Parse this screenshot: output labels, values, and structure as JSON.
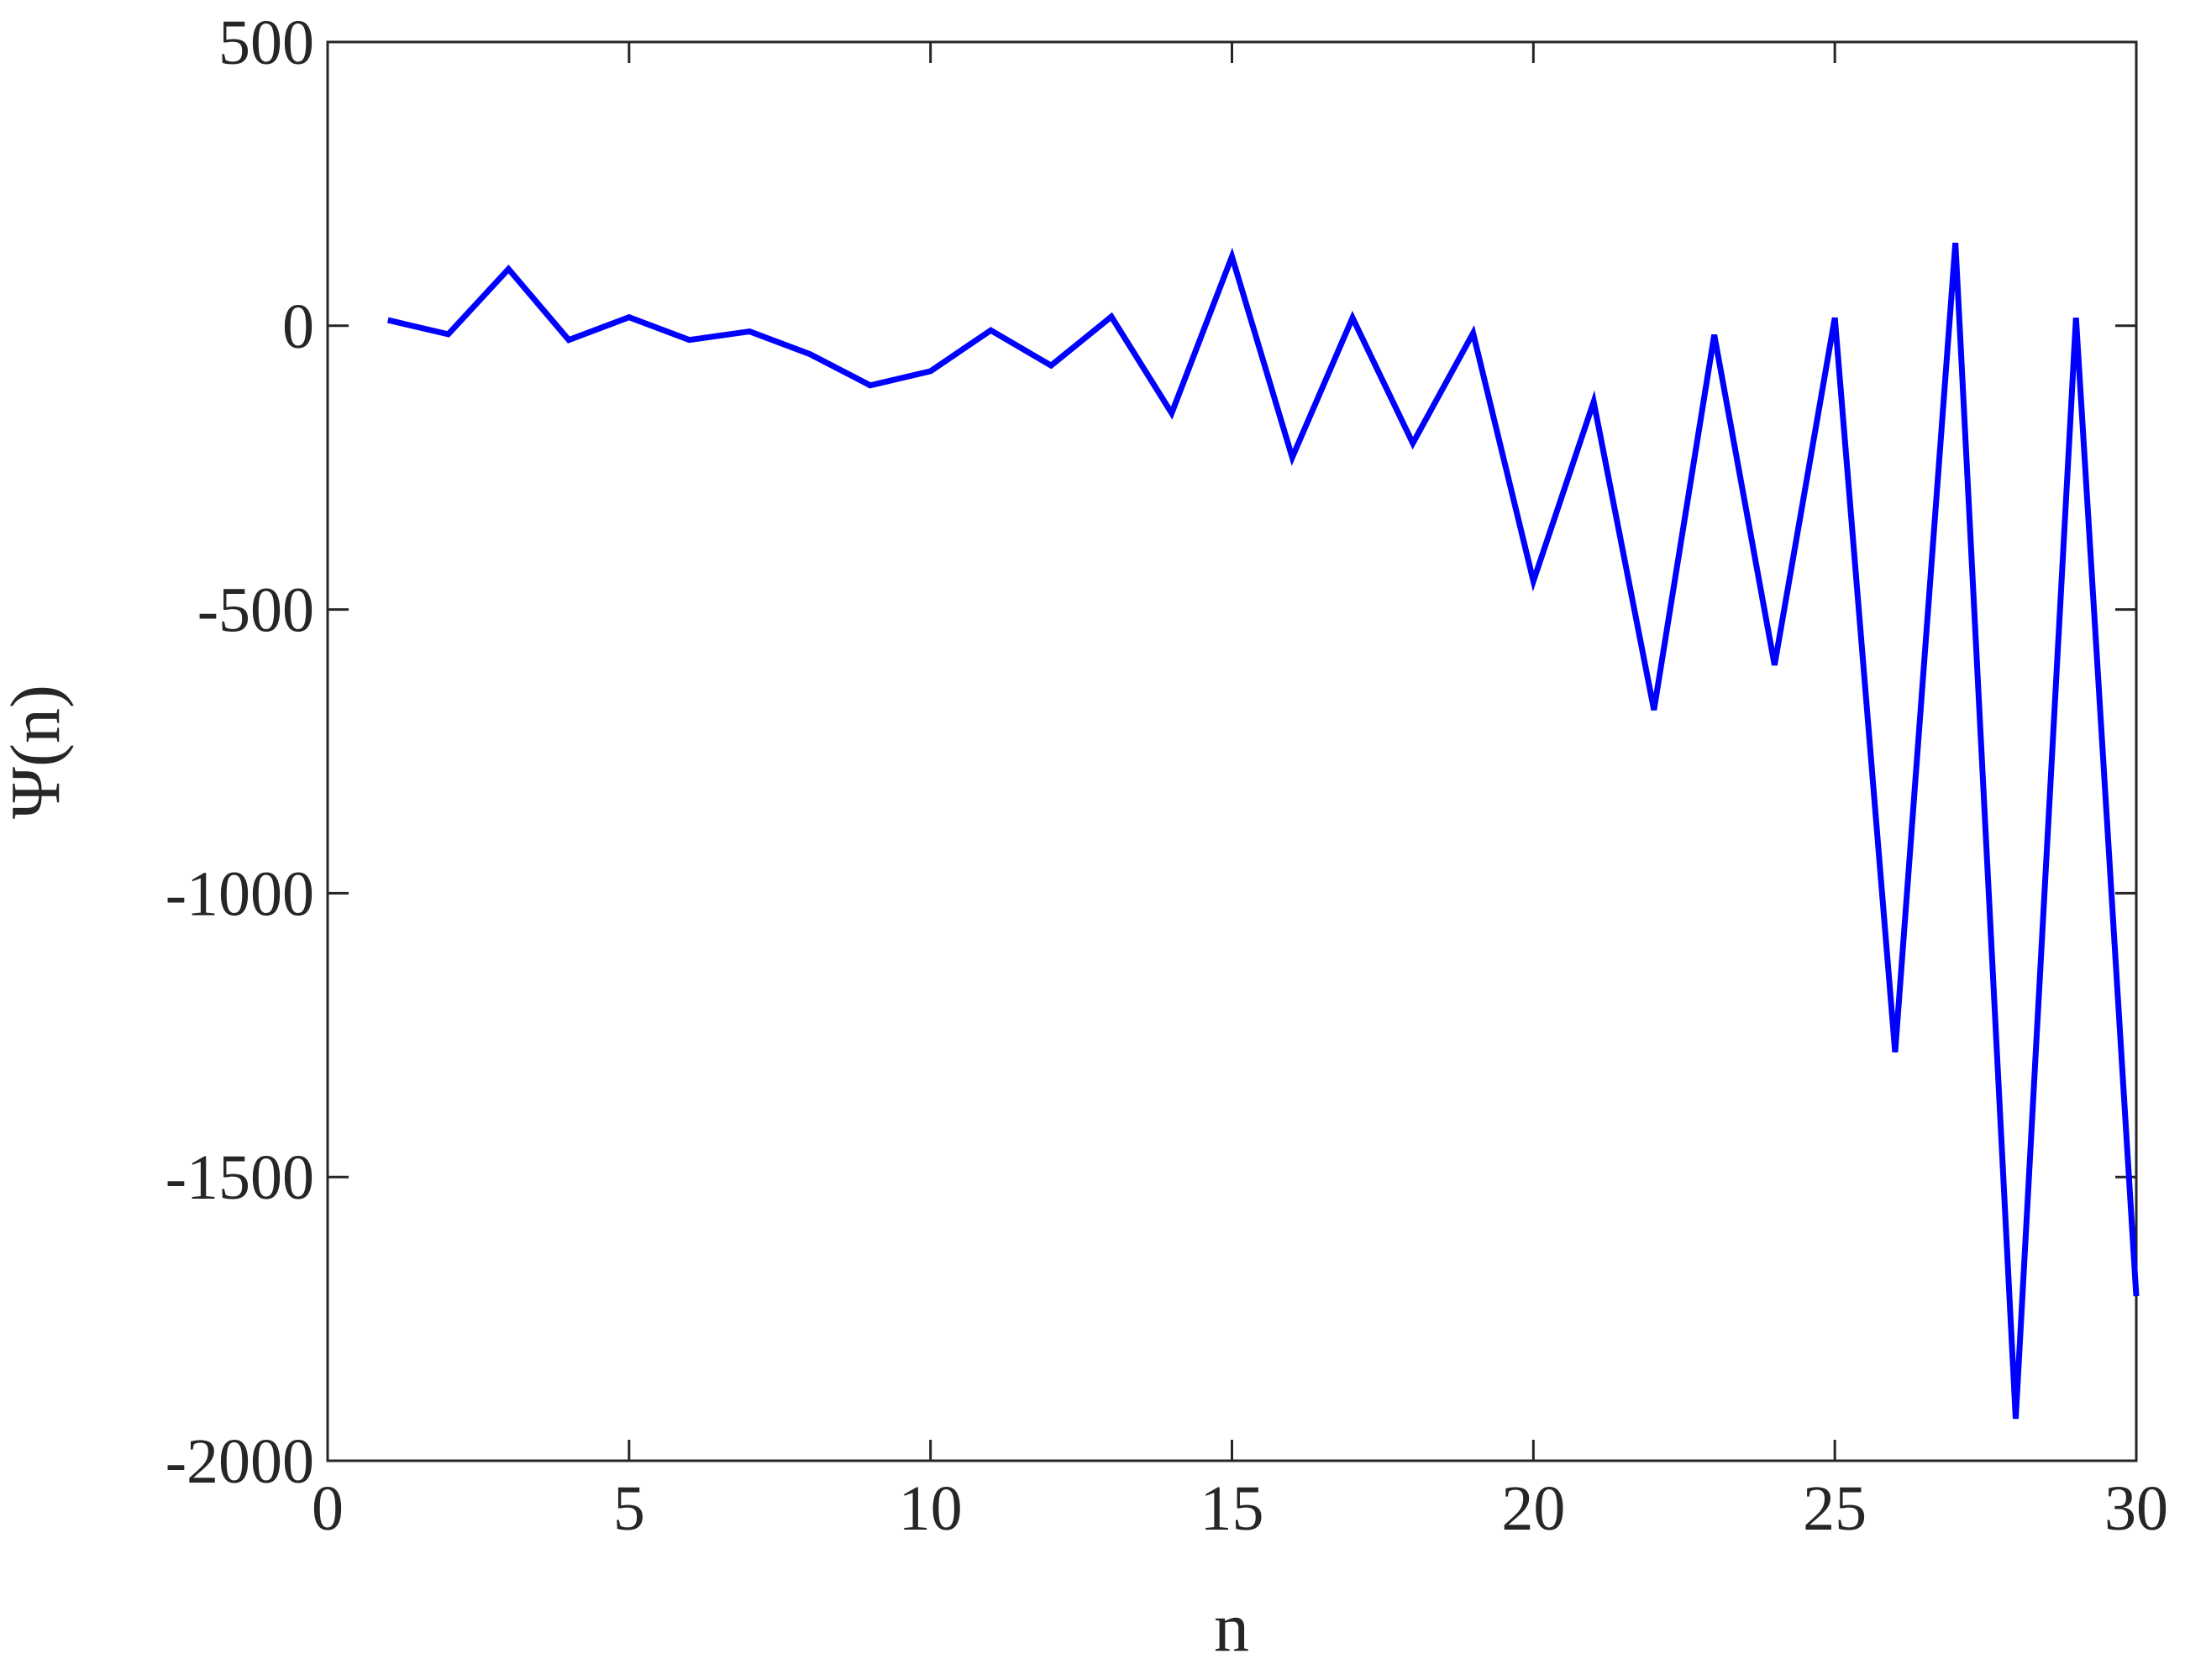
{
  "chart_data": {
    "type": "line",
    "x_label": "n",
    "y_label": "Ψ(n)",
    "x": [
      1,
      2,
      3,
      4,
      5,
      6,
      7,
      8,
      9,
      10,
      11,
      12,
      13,
      14,
      15,
      16,
      17,
      18,
      19,
      20,
      21,
      22,
      23,
      24,
      25,
      26,
      27,
      28,
      29,
      30
    ],
    "series": [
      {
        "color": "#0000ff",
        "values": [
          10,
          -15,
          100,
          -25,
          15,
          -25,
          -10,
          -50,
          -105,
          -80,
          -8,
          -70,
          16,
          -154,
          122,
          -232,
          14,
          -207,
          -13,
          -450,
          -134,
          -677,
          -16,
          -598,
          14,
          -1280,
          146,
          -1926,
          14,
          -1710
        ]
      }
    ],
    "xlim": [
      0,
      30
    ],
    "xticks": [
      0,
      5,
      10,
      15,
      20,
      25,
      30
    ],
    "ylim": [
      -2000,
      500
    ],
    "yticks": [
      -2000,
      -1500,
      -1000,
      -500,
      0,
      500
    ],
    "grid": false
  }
}
